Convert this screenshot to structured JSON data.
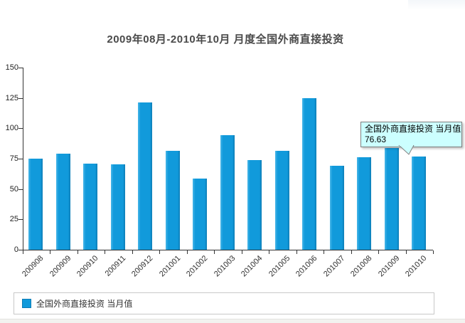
{
  "page": {
    "title": "2009年08月-2010年10月 月度全国外商直接投资"
  },
  "tooltip": {
    "series_label": "全国外商直接投资 当月值",
    "value": "76.63"
  },
  "legend": {
    "label": "全国外商直接投资 当月值"
  },
  "colors": {
    "bar": "#119adb",
    "bar_edge_dark": "#0d7cb5",
    "bar_edge_light": "#4ab7e9",
    "axis": "#333333",
    "tooltip_bg": "#ccffff",
    "tooltip_border": "#808080",
    "legend_border": "#c8c8c8",
    "title_text": "#4a4a4a"
  },
  "chart_data": {
    "type": "bar",
    "title": "2009年08月-2010年10月 月度全国外商直接投资",
    "series_name": "全国外商直接投资 当月值",
    "categories": [
      "200908",
      "200909",
      "200910",
      "200911",
      "200912",
      "201001",
      "201002",
      "201003",
      "201004",
      "201005",
      "201006",
      "201007",
      "201008",
      "201009",
      "201010"
    ],
    "values": [
      74.99,
      78.99,
      71.0,
      70.2,
      121.4,
      81.27,
      58.57,
      94.18,
      73.57,
      81.36,
      125.07,
      69.24,
      76.02,
      83.84,
      76.63
    ],
    "xlabel": "",
    "ylabel": "",
    "ylim": [
      0,
      150
    ],
    "yticks": [
      0,
      25,
      50,
      75,
      100,
      125,
      150
    ],
    "grid": false,
    "legend_position": "bottom",
    "highlighted_point": {
      "category": "201010",
      "value": 76.63,
      "tooltip_text": "全国外商直接投资 当月值 76.63"
    }
  }
}
